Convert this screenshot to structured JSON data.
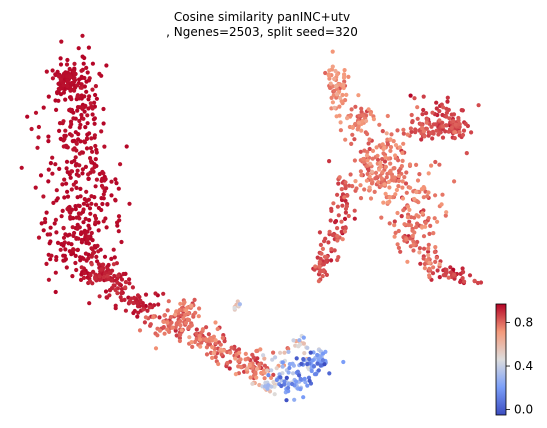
{
  "chart_data": {
    "type": "scatter",
    "title_line1": "Cosine similarity panINC+utv",
    "title_line2": ", Ngenes=2503, split seed=320",
    "xlabel": "",
    "ylabel": "",
    "grid": false,
    "axes_visible": false,
    "colormap": {
      "name": "coolwarm",
      "low_color": "#3b4cc0",
      "mid_color": "#dddddd",
      "high_color": "#b40426",
      "vmin": -0.05,
      "vmax": 0.97,
      "ticks": [
        0.0,
        0.4,
        0.8
      ],
      "tick_labels": [
        "0.0",
        "0.4",
        "0.8"
      ]
    },
    "clusters": [
      {
        "id": "left-body",
        "n": 520,
        "value_mean": 0.96,
        "value_sd": 0.01
      },
      {
        "id": "left-neck",
        "n": 140,
        "value_mean": 0.93,
        "value_sd": 0.02
      },
      {
        "id": "bridge",
        "n": 260,
        "value_mean": 0.8,
        "value_sd": 0.06
      },
      {
        "id": "tail-blue",
        "n": 120,
        "value_mean": 0.22,
        "value_sd": 0.14
      },
      {
        "id": "tail-mixed",
        "n": 60,
        "value_mean": 0.5,
        "value_sd": 0.15
      },
      {
        "id": "small-island",
        "n": 8,
        "value_mean": 0.55,
        "value_sd": 0.1
      },
      {
        "id": "right-top",
        "n": 60,
        "value_mean": 0.74,
        "value_sd": 0.05
      },
      {
        "id": "right-upper-right",
        "n": 140,
        "value_mean": 0.86,
        "value_sd": 0.04
      },
      {
        "id": "right-center",
        "n": 300,
        "value_mean": 0.78,
        "value_sd": 0.05
      },
      {
        "id": "right-left-arm",
        "n": 110,
        "value_mean": 0.85,
        "value_sd": 0.04
      },
      {
        "id": "right-lower-arm",
        "n": 70,
        "value_mean": 0.8,
        "value_sd": 0.05
      },
      {
        "id": "right-tail",
        "n": 40,
        "value_mean": 0.88,
        "value_sd": 0.04
      }
    ]
  }
}
